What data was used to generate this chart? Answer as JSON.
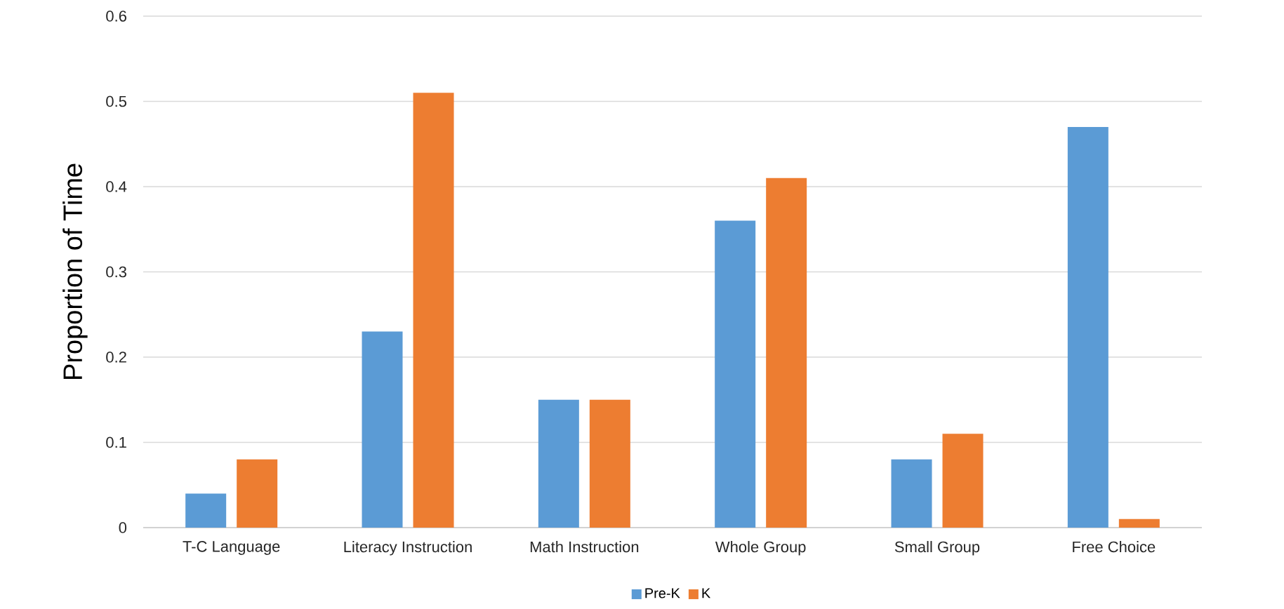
{
  "chart_data": {
    "type": "bar",
    "ylabel": "Proportion of Time",
    "categories": [
      "T-C Language",
      "Literacy Instruction",
      "Math Instruction",
      "Whole Group",
      "Small Group",
      "Free Choice"
    ],
    "series": [
      {
        "name": "Pre-K",
        "color": "#5b9bd5",
        "values": [
          0.04,
          0.23,
          0.15,
          0.36,
          0.08,
          0.47
        ]
      },
      {
        "name": "K",
        "color": "#ed7d31",
        "values": [
          0.08,
          0.51,
          0.15,
          0.41,
          0.11,
          0.01
        ]
      }
    ],
    "ylim": [
      0,
      0.6
    ],
    "yticks": [
      0,
      0.1,
      0.2,
      0.3,
      0.4,
      0.5,
      0.6
    ],
    "grid": "y",
    "legend": "bottom"
  }
}
